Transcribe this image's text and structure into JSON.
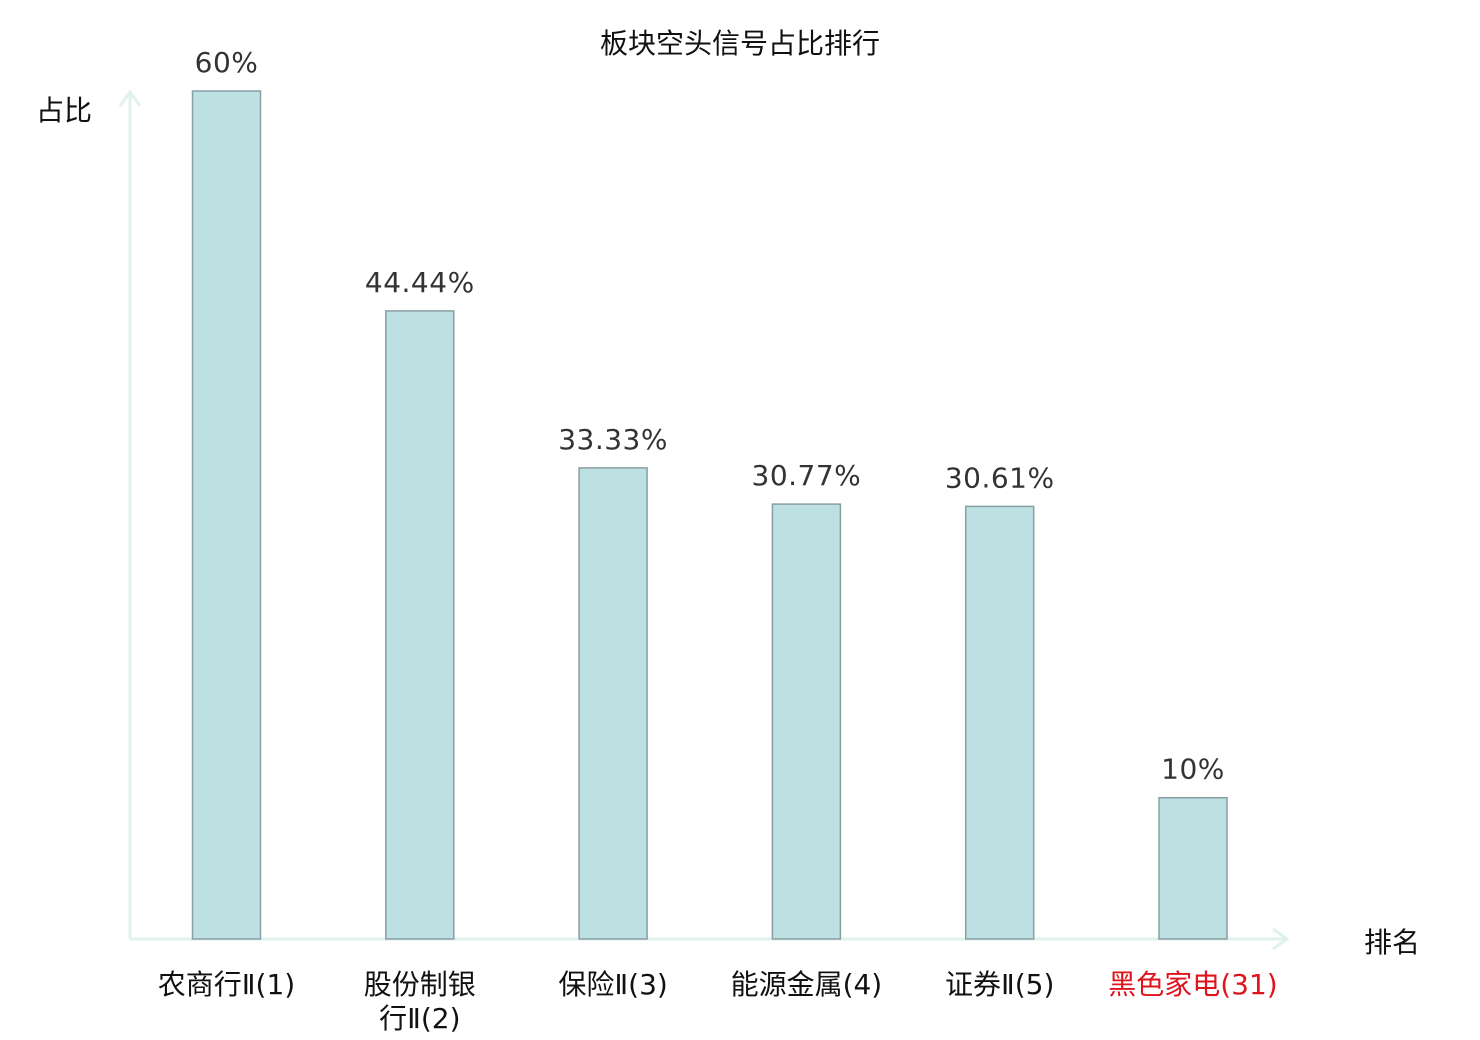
{
  "chart_data": {
    "type": "bar",
    "title": "板块空头信号占比排行",
    "ylabel": "占比",
    "xlabel": "排名",
    "ylim": [
      0,
      60
    ],
    "grid": false,
    "categories": [
      {
        "name": "农商行Ⅱ",
        "rank": "(1)",
        "lines": [
          "农商行Ⅱ(1)"
        ],
        "highlight": false
      },
      {
        "name": "股份制银行Ⅱ",
        "rank": "(2)",
        "lines": [
          "股份制银",
          "行Ⅱ(2)"
        ],
        "highlight": false
      },
      {
        "name": "保险Ⅱ",
        "rank": "(3)",
        "lines": [
          "保险Ⅱ(3)"
        ],
        "highlight": false
      },
      {
        "name": "能源金属",
        "rank": "(4)",
        "lines": [
          "能源金属(4)"
        ],
        "highlight": false
      },
      {
        "name": "证券Ⅱ",
        "rank": "(5)",
        "lines": [
          "证券Ⅱ(5)"
        ],
        "highlight": false
      },
      {
        "name": "黑色家电",
        "rank": "(31)",
        "lines": [
          "黑色家电(31)"
        ],
        "highlight": true
      }
    ],
    "values": [
      60,
      44.44,
      33.33,
      30.77,
      30.61,
      10
    ],
    "value_labels": [
      "60%",
      "44.44%",
      "33.33%",
      "30.77%",
      "30.61%",
      "10%"
    ],
    "colors": {
      "bar_fill": "#bde0e3",
      "bar_stroke": "#889fa3",
      "axis": "#dff2ef",
      "highlight_text": "#e0141c",
      "text": "#111111"
    }
  }
}
